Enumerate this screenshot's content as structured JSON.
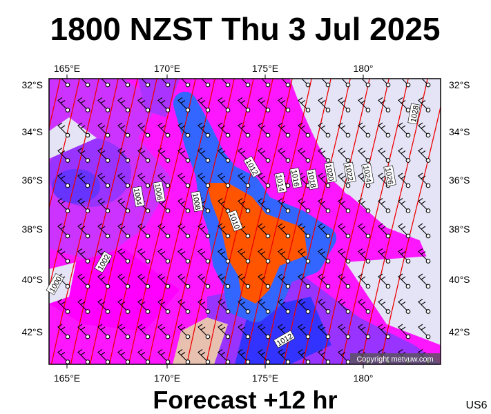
{
  "header": {
    "title": "1800 NZST Thu 3 Jul 2025"
  },
  "map": {
    "lon_labels": [
      "165°E",
      "170°E",
      "175°E",
      "180°"
    ],
    "lat_labels": [
      "32°S",
      "34°S",
      "36°S",
      "38°S",
      "40°S",
      "42°S"
    ],
    "isobar_labels": [
      "1000",
      "1002",
      "1004",
      "1006",
      "1008",
      "1010",
      "1012",
      "1014",
      "1016",
      "1018",
      "1020",
      "1022",
      "1024",
      "1026",
      "1028",
      "1012"
    ],
    "copyright": "Copyright metvuw.com"
  },
  "footer": {
    "forecast": "Forecast +12 hr",
    "region": "US6"
  }
}
